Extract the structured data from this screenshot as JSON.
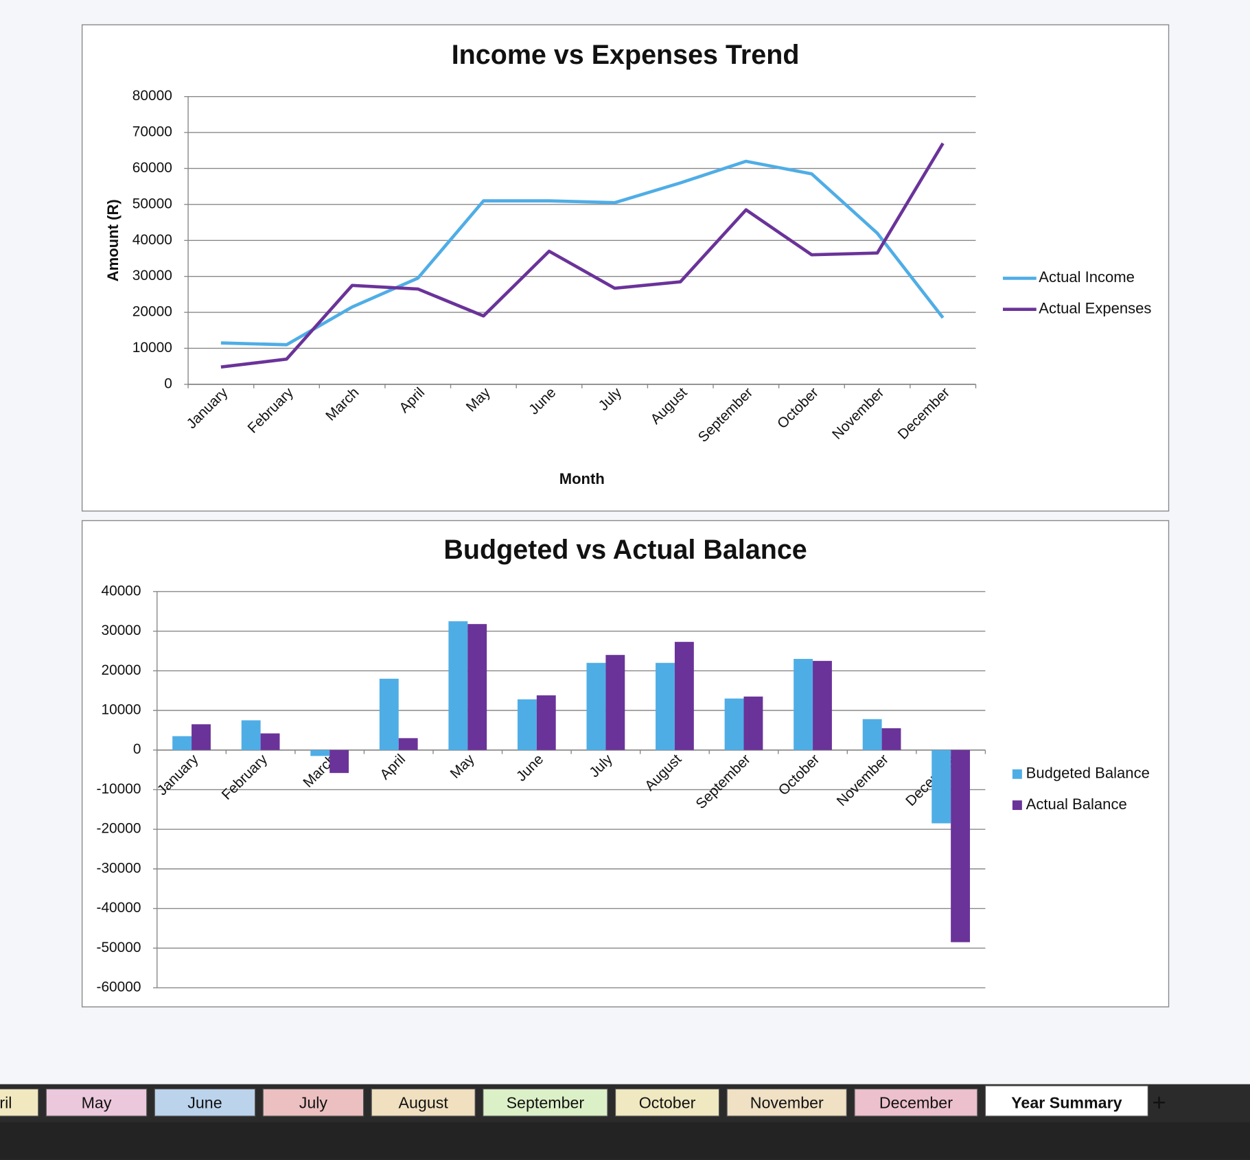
{
  "chart_data": [
    {
      "type": "line",
      "title": "Income vs Expenses Trend",
      "y_label": "Amount (R)",
      "x_label": "Month",
      "categories": [
        "January",
        "February",
        "March",
        "April",
        "May",
        "June",
        "July",
        "August",
        "September",
        "October",
        "November",
        "December"
      ],
      "series": [
        {
          "name": "Actual Income",
          "color": "#4fade6",
          "values": [
            11500,
            11000,
            21500,
            29500,
            51000,
            51000,
            50500,
            56000,
            62000,
            58500,
            42000,
            18500
          ]
        },
        {
          "name": "Actual Expenses",
          "color": "#6a3399",
          "values": [
            4800,
            7000,
            27500,
            26500,
            19000,
            37000,
            26700,
            28500,
            48500,
            36000,
            36500,
            67000
          ]
        }
      ],
      "ylim": [
        0,
        80000
      ],
      "yticks": [
        0,
        10000,
        20000,
        30000,
        40000,
        50000,
        60000,
        70000,
        80000
      ],
      "grid": true,
      "legend": "right"
    },
    {
      "type": "bar",
      "title": "Budgeted vs Actual Balance",
      "categories": [
        "January",
        "February",
        "March",
        "April",
        "May",
        "June",
        "July",
        "August",
        "September",
        "October",
        "November",
        "December"
      ],
      "series": [
        {
          "name": "Budgeted Balance",
          "color": "#4fade6",
          "values": [
            3500,
            7500,
            -1500,
            18000,
            32500,
            12800,
            22000,
            22000,
            13000,
            23000,
            7800,
            -18500
          ]
        },
        {
          "name": "Actual Balance",
          "color": "#6a3399",
          "values": [
            6500,
            4200,
            -5800,
            3000,
            31800,
            13800,
            24000,
            27300,
            13500,
            22500,
            5500,
            -48500
          ]
        }
      ],
      "ylim": [
        -60000,
        40000
      ],
      "yticks": [
        -60000,
        -50000,
        -40000,
        -30000,
        -20000,
        -10000,
        0,
        10000,
        20000,
        30000,
        40000
      ],
      "grid": true,
      "legend": "right"
    }
  ],
  "sheet_tabs": [
    {
      "label": "April",
      "color": "#f2e8c0"
    },
    {
      "label": "May",
      "color": "#ecc8dc"
    },
    {
      "label": "June",
      "color": "#bcd3ec"
    },
    {
      "label": "July",
      "color": "#ecc0c0"
    },
    {
      "label": "August",
      "color": "#f0e0c0"
    },
    {
      "label": "September",
      "color": "#dcf0c8"
    },
    {
      "label": "October",
      "color": "#f0e8c0"
    },
    {
      "label": "November",
      "color": "#f0e0c4"
    },
    {
      "label": "December",
      "color": "#ecc0cc"
    },
    {
      "label": "Year Summary",
      "color": "#ffffff",
      "active": true
    }
  ],
  "add_tab": "+"
}
